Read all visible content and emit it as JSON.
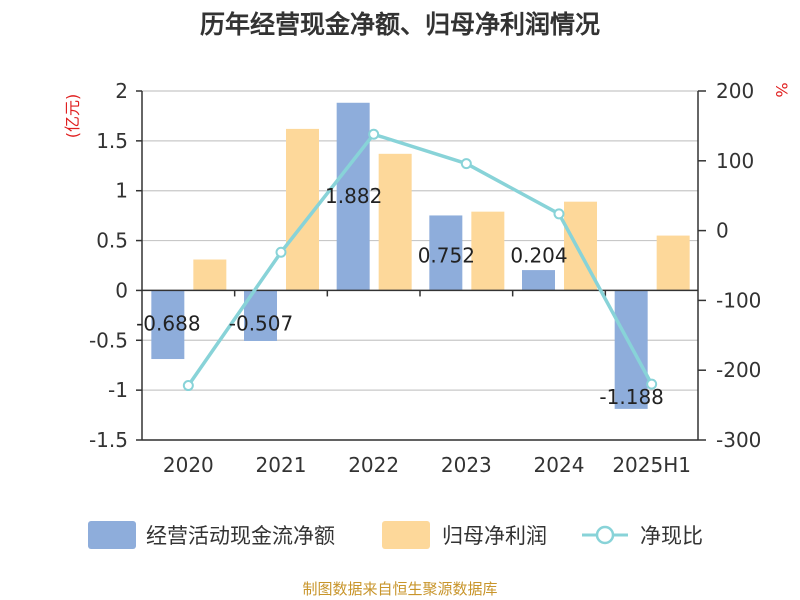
{
  "chart_data": {
    "type": "bar+line",
    "title": "历年经营现金净额、归母净利润情况",
    "categories": [
      "2020",
      "2021",
      "2022",
      "2023",
      "2024",
      "2025H1"
    ],
    "series": [
      {
        "name": "经营活动现金流净额",
        "type": "bar",
        "axis": "left",
        "color": "#8eaddb",
        "values": [
          -0.688,
          -0.507,
          1.882,
          0.752,
          0.204,
          -1.188
        ],
        "labels": [
          "-0.688",
          "-0.507",
          "1.882",
          "0.752",
          "0.204",
          "-1.188"
        ]
      },
      {
        "name": "归母净利润",
        "type": "bar",
        "axis": "left",
        "color": "#fdd89a",
        "values": [
          0.31,
          1.62,
          1.37,
          0.79,
          0.89,
          0.55
        ]
      },
      {
        "name": "净现比",
        "type": "line",
        "axis": "right",
        "color": "#88d3d8",
        "values": [
          -222,
          -31,
          138,
          96,
          24,
          -220
        ]
      }
    ],
    "y_left": {
      "unit": "(亿元)",
      "ylim": [
        -1.5,
        2
      ],
      "ticks": [
        "2",
        "1.5",
        "1",
        "0.5",
        "0",
        "-0.5",
        "-1",
        "-1.5"
      ]
    },
    "y_right": {
      "unit": "%",
      "ylim": [
        -300,
        200
      ],
      "ticks": [
        "200",
        "100",
        "0",
        "-100",
        "-200",
        "-300"
      ]
    },
    "grid": true,
    "legend": "bottom"
  },
  "source": "制图数据来自恒生聚源数据库"
}
